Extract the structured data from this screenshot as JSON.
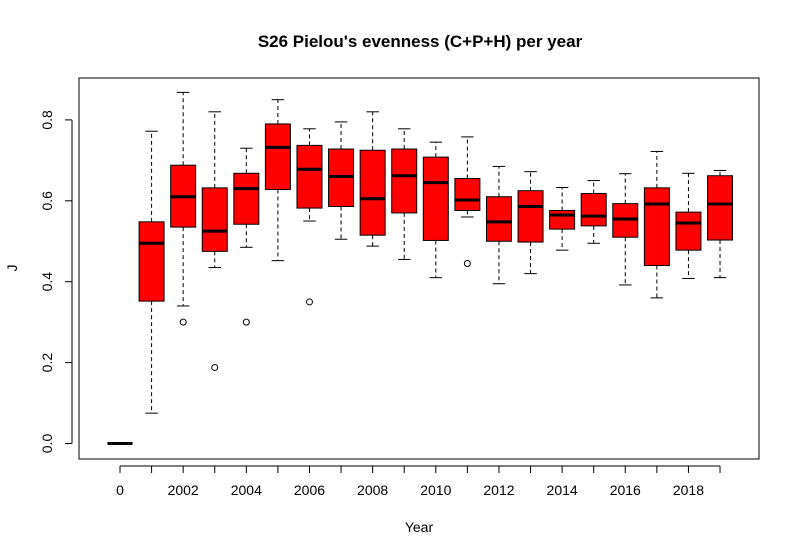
{
  "chart_data": {
    "type": "boxplot",
    "title": "S26 Pielou's evenness (C+P+H) per year",
    "xlabel": "Year",
    "ylabel": "J",
    "ylim": [
      0,
      0.88
    ],
    "y_ticks": [
      "0.0",
      "0.2",
      "0.4",
      "0.6",
      "0.8"
    ],
    "x_tick_labels": [
      "0",
      "",
      "2002",
      "",
      "2004",
      "",
      "2006",
      "",
      "2008",
      "",
      "2010",
      "",
      "2012",
      "",
      "2014",
      "",
      "2016",
      "",
      "2018",
      ""
    ],
    "box_color": "#ff0000",
    "boxes": [
      {
        "min": 0.0,
        "q1": 0.0,
        "median": 0.0,
        "q3": 0.0,
        "max": 0.0,
        "outliers": []
      },
      {
        "min": 0.075,
        "q1": 0.352,
        "median": 0.495,
        "q3": 0.548,
        "max": 0.772,
        "outliers": []
      },
      {
        "min": 0.34,
        "q1": 0.535,
        "median": 0.61,
        "q3": 0.688,
        "max": 0.868,
        "outliers": [
          0.3
        ]
      },
      {
        "min": 0.435,
        "q1": 0.475,
        "median": 0.525,
        "q3": 0.632,
        "max": 0.82,
        "outliers": [
          0.188
        ]
      },
      {
        "min": 0.485,
        "q1": 0.542,
        "median": 0.63,
        "q3": 0.668,
        "max": 0.73,
        "outliers": [
          0.3
        ]
      },
      {
        "min": 0.452,
        "q1": 0.628,
        "median": 0.732,
        "q3": 0.79,
        "max": 0.85,
        "outliers": []
      },
      {
        "min": 0.55,
        "q1": 0.582,
        "median": 0.678,
        "q3": 0.737,
        "max": 0.778,
        "outliers": [
          0.35
        ]
      },
      {
        "min": 0.505,
        "q1": 0.586,
        "median": 0.66,
        "q3": 0.728,
        "max": 0.795,
        "outliers": []
      },
      {
        "min": 0.488,
        "q1": 0.515,
        "median": 0.605,
        "q3": 0.725,
        "max": 0.82,
        "outliers": []
      },
      {
        "min": 0.455,
        "q1": 0.57,
        "median": 0.662,
        "q3": 0.728,
        "max": 0.778,
        "outliers": []
      },
      {
        "min": 0.41,
        "q1": 0.502,
        "median": 0.645,
        "q3": 0.708,
        "max": 0.745,
        "outliers": []
      },
      {
        "min": 0.56,
        "q1": 0.576,
        "median": 0.602,
        "q3": 0.655,
        "max": 0.758,
        "outliers": [
          0.445
        ]
      },
      {
        "min": 0.395,
        "q1": 0.5,
        "median": 0.548,
        "q3": 0.61,
        "max": 0.685,
        "outliers": []
      },
      {
        "min": 0.42,
        "q1": 0.498,
        "median": 0.586,
        "q3": 0.625,
        "max": 0.672,
        "outliers": []
      },
      {
        "min": 0.478,
        "q1": 0.53,
        "median": 0.565,
        "q3": 0.576,
        "max": 0.633,
        "outliers": []
      },
      {
        "min": 0.495,
        "q1": 0.538,
        "median": 0.562,
        "q3": 0.618,
        "max": 0.65,
        "outliers": []
      },
      {
        "min": 0.392,
        "q1": 0.51,
        "median": 0.555,
        "q3": 0.593,
        "max": 0.667,
        "outliers": []
      },
      {
        "min": 0.36,
        "q1": 0.44,
        "median": 0.592,
        "q3": 0.632,
        "max": 0.722,
        "outliers": []
      },
      {
        "min": 0.408,
        "q1": 0.478,
        "median": 0.545,
        "q3": 0.572,
        "max": 0.668,
        "outliers": []
      },
      {
        "min": 0.41,
        "q1": 0.503,
        "median": 0.592,
        "q3": 0.662,
        "max": 0.675,
        "outliers": []
      }
    ]
  }
}
